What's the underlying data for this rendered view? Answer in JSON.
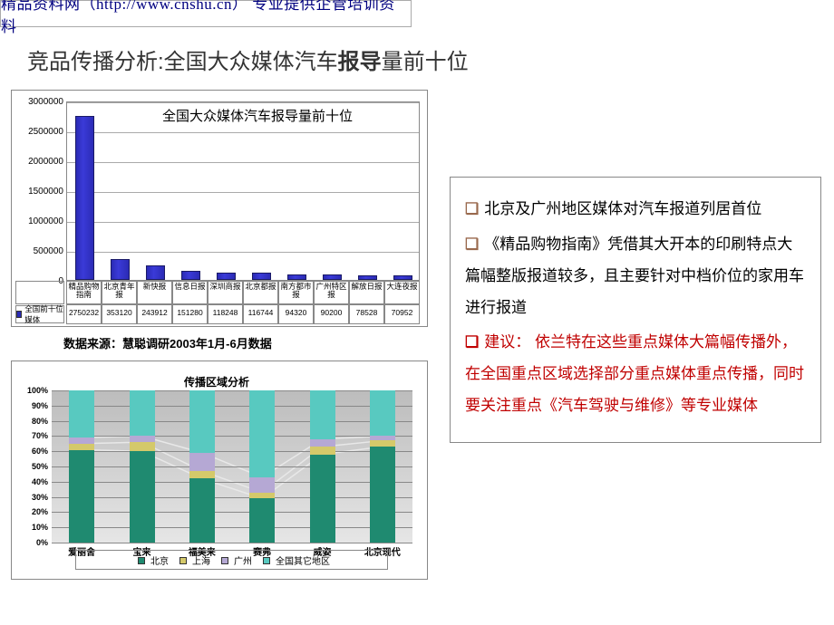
{
  "header": {
    "text": "精品资料网（http://www.cnshu.cn） 专业提供企管培训资料",
    "color": "#000080"
  },
  "title": {
    "prefix": "竞品传播分析:全国大众媒体汽车",
    "bold": "报导",
    "suffix": "量前十位"
  },
  "bar_chart": {
    "title": "全国大众媒体汽车报导量前十位",
    "ylim": [
      0,
      3000000
    ],
    "ytick_step": 500000,
    "yticks": [
      "0",
      "500000",
      "1000000",
      "1500000",
      "2000000",
      "2500000",
      "3000000"
    ],
    "bar_color": "#2b2bb5",
    "background": "#ffffff",
    "grid_color": "#aaaaaa",
    "legend_label": "全国前十位媒体",
    "categories": [
      "精品购物指南",
      "北京青年报",
      "新快报",
      "信息日报",
      "深圳商报",
      "北京都报",
      "南方都市报",
      "广州特区报",
      "解放日报",
      "大连夜报"
    ],
    "values": [
      2750232,
      353120,
      243912,
      151280,
      118248,
      116744,
      94320,
      90200,
      78528,
      70952
    ]
  },
  "source_line": "数据来源：慧聪调研2003年1月-6月数据",
  "stack_chart": {
    "title": "传播区域分析",
    "ylim": [
      0,
      100
    ],
    "ytick_step": 10,
    "yticks": [
      "0%",
      "10%",
      "20%",
      "30%",
      "40%",
      "50%",
      "60%",
      "70%",
      "80%",
      "90%",
      "100%"
    ],
    "background_grad": [
      "#bcbcbc",
      "#e6e6e6"
    ],
    "grid_color": "#888888",
    "categories": [
      "爱丽舍",
      "宝来",
      "福美来",
      "赛弗",
      "威姿",
      "北京现代"
    ],
    "segments": [
      "北京",
      "上海",
      "广州",
      "全国其它地区"
    ],
    "seg_colors": [
      "#1f8a70",
      "#d4c96a",
      "#b5a8d4",
      "#58c9c0"
    ],
    "line_color": "#e8e8e8",
    "data": [
      {
        "北京": 61,
        "上海": 4,
        "广州": 4,
        "全国其它地区": 31
      },
      {
        "北京": 60,
        "上海": 6,
        "广州": 4,
        "全国其它地区": 30
      },
      {
        "北京": 42,
        "上海": 5,
        "广州": 12,
        "全国其它地区": 41
      },
      {
        "北京": 29,
        "上海": 4,
        "广州": 10,
        "全国其它地区": 57
      },
      {
        "北京": 58,
        "上海": 5,
        "广州": 5,
        "全国其它地区": 32
      },
      {
        "北京": 63,
        "上海": 4,
        "广州": 3,
        "全国其它地区": 30
      }
    ]
  },
  "bullets": [
    {
      "color": "#99694d",
      "text": "北京及广州地区媒体对汽车报道列居首位"
    },
    {
      "color": "#99694d",
      "text": "《精品购物指南》凭借其大开本的印刷特点大篇幅整版报道较多，且主要针对中档价位的家用车进行报道"
    },
    {
      "color": "#c00000",
      "red": true,
      "text": "建议：   依兰特在这些重点媒体大篇幅传播外，在全国重点区域选择部分重点媒体重点传播，同时要关注重点《汽车驾驶与维修》等专业媒体"
    }
  ],
  "box_border": "#888888"
}
